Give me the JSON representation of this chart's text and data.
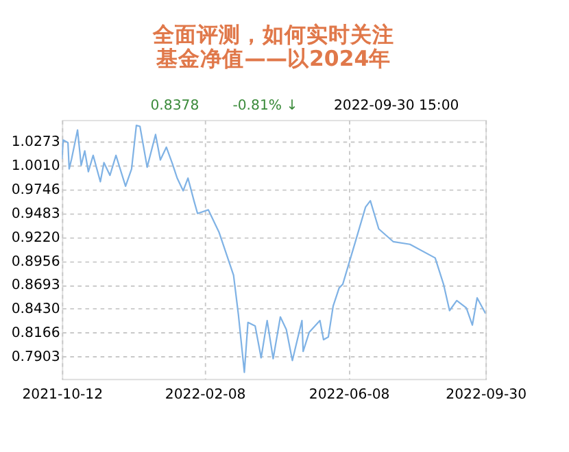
{
  "chart_data": {
    "type": "line",
    "title": "全面评测，如何实时关注基金净值——以2024年",
    "annotations": [
      "0.8378",
      "-0.81% ↓",
      "2022-09-30 15:00"
    ],
    "x": [
      "2021-10-12",
      "2021-10-13",
      "2021-10-17",
      "2021-10-18",
      "2021-10-20",
      "2021-10-25",
      "2021-10-28",
      "2021-10-31",
      "2021-11-03",
      "2021-11-07",
      "2021-11-13",
      "2021-11-16",
      "2021-11-21",
      "2021-11-26",
      "2021-12-04",
      "2021-12-09",
      "2021-12-13",
      "2021-12-16",
      "2021-12-22",
      "2021-12-29",
      "2022-01-02",
      "2022-01-07",
      "2022-01-12",
      "2022-01-16",
      "2022-01-21",
      "2022-01-25",
      "2022-01-30",
      "2022-02-02",
      "2022-02-11",
      "2022-02-20",
      "2022-03-04",
      "2022-03-08",
      "2022-03-13",
      "2022-03-16",
      "2022-03-22",
      "2022-03-27",
      "2022-04-01",
      "2022-04-06",
      "2022-04-12",
      "2022-04-17",
      "2022-04-22",
      "2022-04-30",
      "2022-05-01",
      "2022-05-06",
      "2022-05-15",
      "2022-05-18",
      "2022-05-22",
      "2022-05-26",
      "2022-05-31",
      "2022-06-03",
      "2022-06-14",
      "2022-06-22",
      "2022-06-26",
      "2022-07-03",
      "2022-07-15",
      "2022-07-29",
      "2022-08-19",
      "2022-08-26",
      "2022-08-31",
      "2022-09-06",
      "2022-09-14",
      "2022-09-19",
      "2022-09-23",
      "2022-09-30"
    ],
    "series": [
      {
        "color": "#7fb2e5",
        "values": [
          1.008,
          1.029,
          1.026,
          0.997,
          1.008,
          1.04,
          1.001,
          1.017,
          0.994,
          1.012,
          0.983,
          1.004,
          0.99,
          1.012,
          0.978,
          0.997,
          1.045,
          1.044,
          0.999,
          1.035,
          1.007,
          1.021,
          1.003,
          0.987,
          0.973,
          0.987,
          0.962,
          0.948,
          0.952,
          0.927,
          0.88,
          0.837,
          0.773,
          0.828,
          0.824,
          0.789,
          0.83,
          0.788,
          0.834,
          0.82,
          0.786,
          0.83,
          0.796,
          0.817,
          0.83,
          0.809,
          0.812,
          0.846,
          0.866,
          0.87,
          0.919,
          0.955,
          0.962,
          0.931,
          0.917,
          0.914,
          0.899,
          0.87,
          0.841,
          0.852,
          0.844,
          0.825,
          0.855,
          0.8378
        ]
      }
    ],
    "xlim": [
      "2021-10-12",
      "2022-09-30"
    ],
    "xticks": [
      "2021-10-12",
      "2022-02-08",
      "2022-06-08",
      "2022-09-30"
    ],
    "ylim": [
      0.7657,
      1.051
    ],
    "yticks": [
      1.0273,
      {
        "value": 1.001,
        "label": "1.0010"
      },
      0.9746,
      0.9483,
      {
        "value": 0.922,
        "label": "0.9220"
      },
      0.8956,
      0.8693,
      {
        "value": 0.843,
        "label": "0.8430"
      },
      0.8166,
      0.7903
    ],
    "grid": true,
    "marker": "none",
    "line_style": "solid"
  }
}
